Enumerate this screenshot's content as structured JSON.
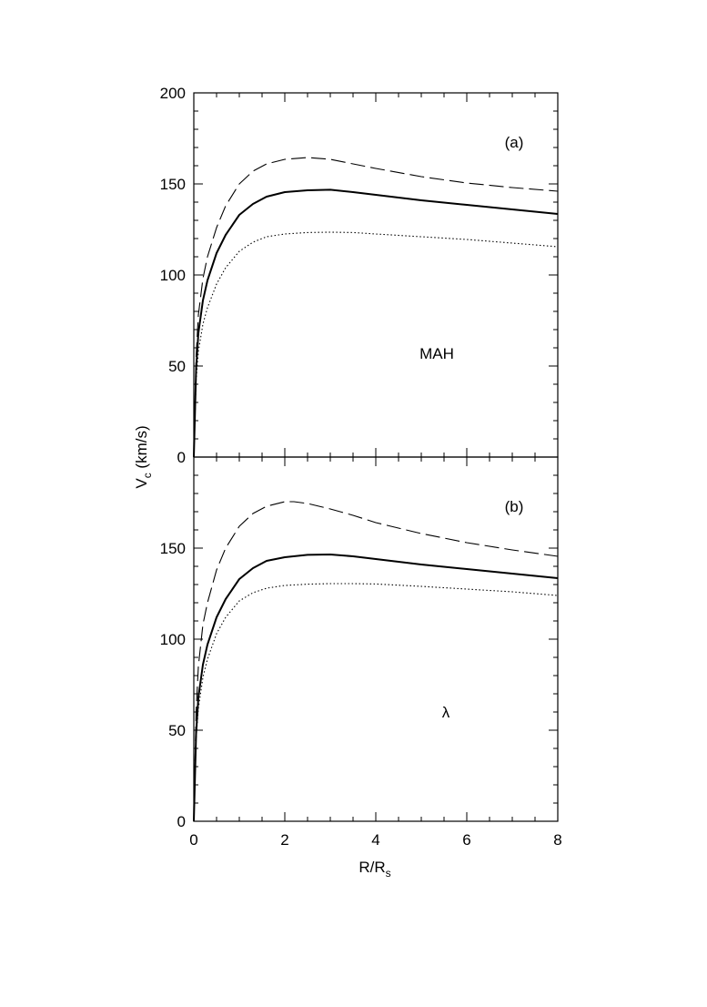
{
  "chart_data": {
    "type": "line",
    "ylabel": {
      "main": "V",
      "sub": "c",
      "unit": " (km/s)"
    },
    "xlabel": {
      "main": "R/R",
      "sub": "s"
    },
    "xlim": [
      0,
      8
    ],
    "x_ticks": [
      "0",
      "2",
      "4",
      "6",
      "8"
    ],
    "grid": false,
    "legend": "none",
    "panels": [
      {
        "tag": "(a)",
        "annotation": "MAH",
        "ylim": [
          0,
          200
        ],
        "y_ticks": [
          "0",
          "50",
          "100",
          "150",
          "200"
        ],
        "series": [
          {
            "style": "dashed",
            "x": [
              0,
              0.05,
              0.1,
              0.2,
              0.3,
              0.5,
              0.7,
              1.0,
              1.3,
              1.6,
              2.0,
              2.5,
              3.0,
              3.5,
              4.0,
              5.0,
              6.0,
              7.0,
              8.0
            ],
            "y": [
              0,
              55,
              78,
              98,
              110,
              126,
              138,
              150,
              157,
              161,
              163.5,
              164.5,
              163.5,
              161,
              158.5,
              154,
              150.5,
              148,
              146
            ]
          },
          {
            "style": "solid",
            "x": [
              0,
              0.05,
              0.1,
              0.2,
              0.3,
              0.5,
              0.7,
              1.0,
              1.3,
              1.6,
              2.0,
              2.5,
              3.0,
              3.5,
              4.0,
              5.0,
              6.0,
              7.0,
              8.0
            ],
            "y": [
              0,
              48,
              68,
              86,
              97,
              112,
              122,
              133,
              139,
              143,
              145.5,
              146.5,
              146.8,
              145.5,
              144,
              141,
              138.5,
              136,
              133.5
            ]
          },
          {
            "style": "dotted",
            "x": [
              0,
              0.05,
              0.1,
              0.2,
              0.3,
              0.5,
              0.7,
              1.0,
              1.3,
              1.6,
              2.0,
              2.5,
              3.0,
              3.5,
              4.0,
              5.0,
              6.0,
              7.0,
              8.0
            ],
            "y": [
              0,
              42,
              58,
              73,
              82,
              95,
              104,
              113,
              118,
              121,
              122.5,
              123.3,
              123.5,
              123.3,
              122.5,
              121,
              119.5,
              117.5,
              115.5
            ]
          }
        ]
      },
      {
        "tag": "(b)",
        "annotation": "λ",
        "ylim": [
          0,
          200
        ],
        "y_ticks": [
          "0",
          "50",
          "100",
          "150"
        ],
        "series": [
          {
            "style": "dashed",
            "x": [
              0,
              0.05,
              0.1,
              0.2,
              0.3,
              0.5,
              0.7,
              1.0,
              1.3,
              1.6,
              2.0,
              2.2,
              2.5,
              3.0,
              3.5,
              4.0,
              5.0,
              6.0,
              7.0,
              8.0
            ],
            "y": [
              0,
              60,
              85,
              108,
              120,
              138,
              150,
              162,
              169,
              173,
              175.5,
              175.5,
              174.5,
              171.5,
              168,
              164,
              158,
              153,
              149,
              145.5
            ]
          },
          {
            "style": "solid",
            "x": [
              0,
              0.05,
              0.1,
              0.2,
              0.3,
              0.5,
              0.7,
              1.0,
              1.3,
              1.6,
              2.0,
              2.5,
              3.0,
              3.5,
              4.0,
              5.0,
              6.0,
              7.0,
              8.0
            ],
            "y": [
              0,
              48,
              68,
              86,
              97,
              112,
              122,
              133,
              139,
              143,
              145,
              146.3,
              146.5,
              145.5,
              144,
              141,
              138.5,
              136,
              133.5
            ]
          },
          {
            "style": "dotted",
            "x": [
              0,
              0.05,
              0.1,
              0.2,
              0.3,
              0.5,
              0.7,
              1.0,
              1.3,
              1.6,
              2.0,
              2.5,
              3.0,
              3.5,
              4.0,
              5.0,
              6.0,
              7.0,
              8.0
            ],
            "y": [
              0,
              45,
              62,
              79,
              89,
              103,
              112,
              121,
              125.5,
              128,
              129.5,
              130.2,
              130.5,
              130.5,
              130.3,
              129,
              127.5,
              126,
              124
            ]
          }
        ]
      }
    ]
  }
}
